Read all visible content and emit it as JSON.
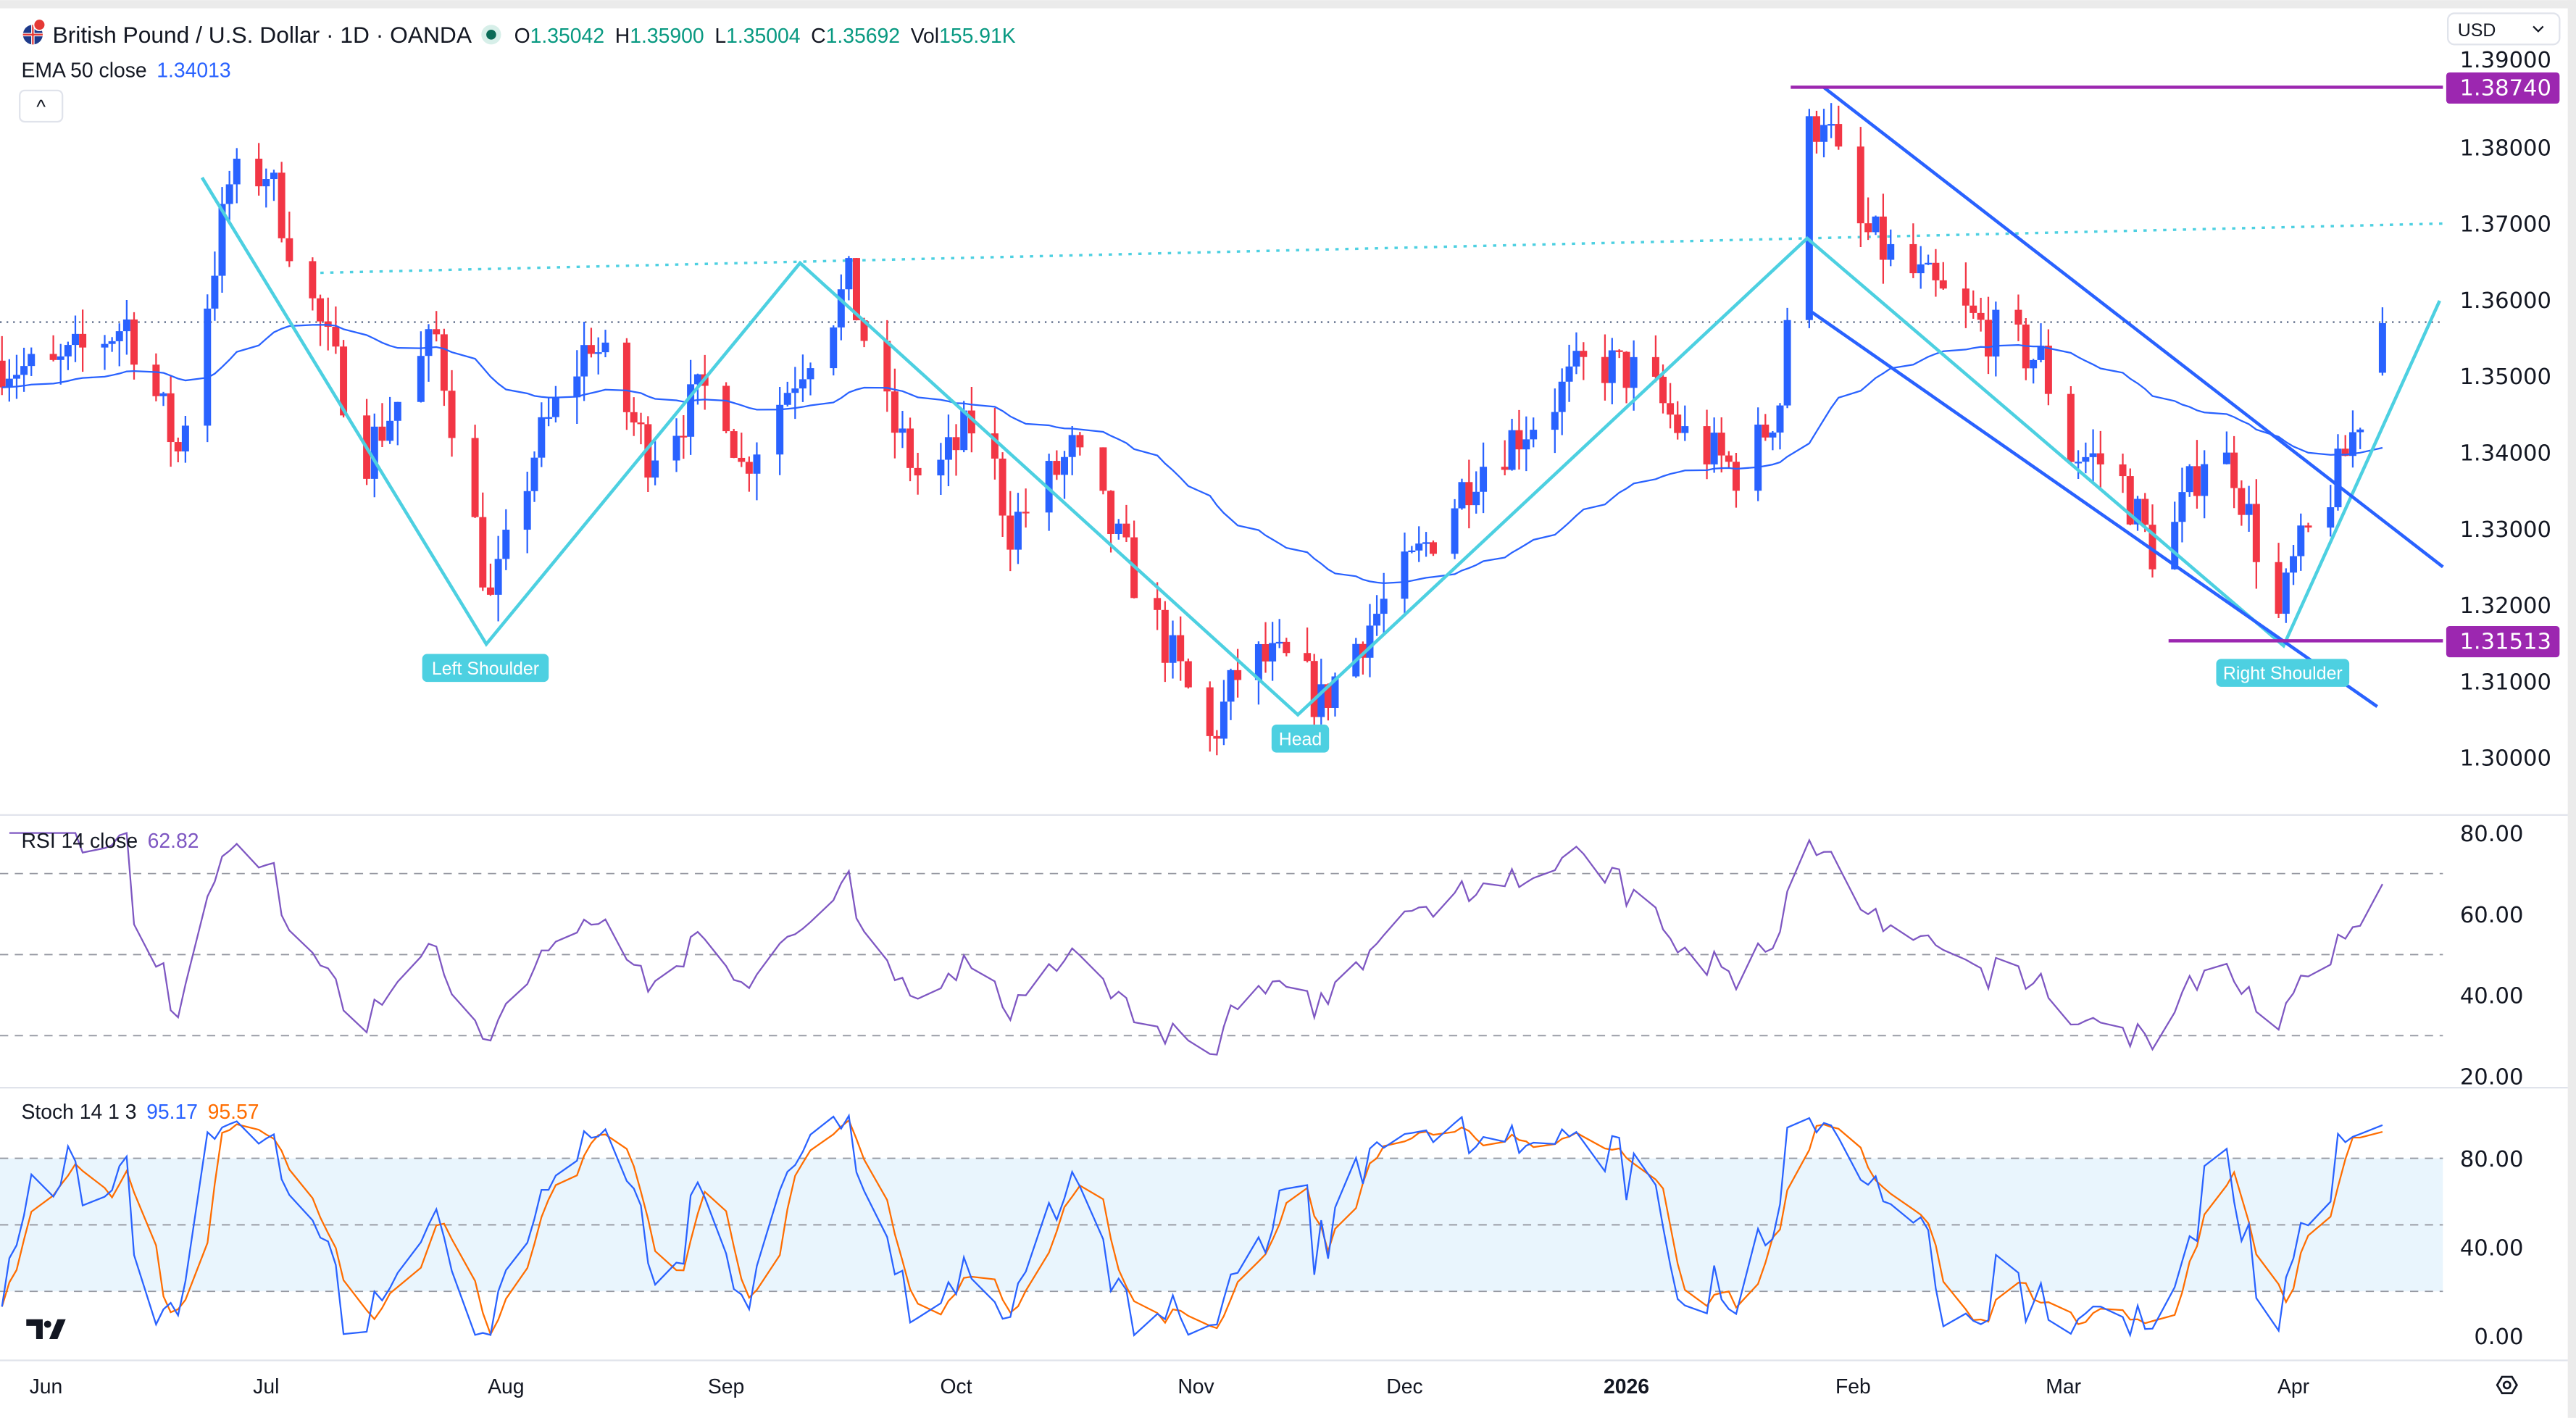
{
  "header": {
    "title": "British Pound / U.S. Dollar · 1D · OANDA",
    "open_label": "O",
    "open": "1.35042",
    "high_label": "H",
    "high": "1.35900",
    "low_label": "L",
    "low": "1.35004",
    "close_label": "C",
    "close": "1.35692",
    "vol_label": "Vol",
    "vol": "155.91K",
    "ema_label": "EMA 50 close",
    "ema_value": "1.34013",
    "currency": "USD",
    "collapse_glyph": "^"
  },
  "rsi": {
    "label": "RSI 14 close",
    "value": "62.82",
    "ticks": [
      "80.00",
      "60.00",
      "40.00",
      "20.00"
    ],
    "levels": [
      70,
      50,
      30
    ]
  },
  "stoch": {
    "label": "Stoch 14 1 3",
    "k_value": "95.17",
    "d_value": "95.57",
    "ticks": [
      "80.00",
      "40.00",
      "0.00"
    ],
    "band": [
      20,
      80
    ]
  },
  "annotations": {
    "left_shoulder": "Left Shoulder",
    "head": "Head",
    "right_shoulder": "Right Shoulder",
    "resistance_tag": "1.38740",
    "support_tag": "1.31513"
  },
  "colors": {
    "up": "#2962ff",
    "down": "#f23645",
    "ema": "#2962ff",
    "pattern": "#4dd0e1",
    "channel": "#2962ff",
    "levels": "#9c27b0",
    "rsi": "#7e57c2",
    "stoch_k": "#2962ff",
    "stoch_d": "#ff6d00"
  },
  "chart_data": {
    "type": "candlestick",
    "symbol": "GBPUSD",
    "interval": "1D",
    "price_ticks": [
      "1.39000",
      "1.38000",
      "1.37000",
      "1.36000",
      "1.35000",
      "1.34000",
      "1.33000",
      "1.32000",
      "1.31000",
      "1.30000"
    ],
    "ylim": [
      1.2975,
      1.3925
    ],
    "time_ticks": [
      "Jun",
      "Jul",
      "Aug",
      "Sep",
      "Oct",
      "Nov",
      "Dec",
      "2026",
      "Feb",
      "Mar",
      "Apr"
    ],
    "last_candle": {
      "open": 1.35042,
      "high": 1.359,
      "low": 1.35004,
      "close": 1.35692
    },
    "approx_close_path": [
      [
        "2025-05-26",
        1.352
      ],
      [
        "2025-06-01",
        1.35
      ],
      [
        "2025-06-12",
        1.357
      ],
      [
        "2025-06-19",
        1.34
      ],
      [
        "2025-06-26",
        1.375
      ],
      [
        "2025-07-01",
        1.377
      ],
      [
        "2025-07-06",
        1.362
      ],
      [
        "2025-07-14",
        1.34
      ],
      [
        "2025-07-23",
        1.355
      ],
      [
        "2025-07-30",
        1.32
      ],
      [
        "2025-08-05",
        1.34
      ],
      [
        "2025-08-13",
        1.355
      ],
      [
        "2025-08-21",
        1.34
      ],
      [
        "2025-08-31",
        1.35
      ],
      [
        "2025-09-03",
        1.338
      ],
      [
        "2025-09-11",
        1.352
      ],
      [
        "2025-09-17",
        1.362
      ],
      [
        "2025-09-22",
        1.345
      ],
      [
        "2025-09-27",
        1.335
      ],
      [
        "2025-10-04",
        1.345
      ],
      [
        "2025-10-08",
        1.33
      ],
      [
        "2025-10-16",
        1.34
      ],
      [
        "2025-10-21",
        1.33
      ],
      [
        "2025-10-28",
        1.315
      ],
      [
        "2025-11-03",
        1.302
      ],
      [
        "2025-11-08",
        1.313
      ],
      [
        "2025-11-15",
        1.312
      ],
      [
        "2025-11-19",
        1.307
      ],
      [
        "2025-11-24",
        1.315
      ],
      [
        "2025-12-02",
        1.325
      ],
      [
        "2025-12-11",
        1.338
      ],
      [
        "2025-12-20",
        1.345
      ],
      [
        "2025-12-27",
        1.352
      ],
      [
        "2026-01-03",
        1.35
      ],
      [
        "2026-01-09",
        1.342
      ],
      [
        "2026-01-17",
        1.337
      ],
      [
        "2026-01-22",
        1.347
      ],
      [
        "2026-01-25",
        1.38
      ],
      [
        "2026-01-28",
        1.385
      ],
      [
        "2026-02-01",
        1.37
      ],
      [
        "2026-02-08",
        1.364
      ],
      [
        "2026-02-17",
        1.357
      ],
      [
        "2026-02-26",
        1.352
      ],
      [
        "2026-03-02",
        1.34
      ],
      [
        "2026-03-08",
        1.338
      ],
      [
        "2026-03-14",
        1.325
      ],
      [
        "2026-03-20",
        1.34
      ],
      [
        "2026-03-24",
        1.338
      ],
      [
        "2026-03-30",
        1.318
      ],
      [
        "2026-04-01",
        1.325
      ],
      [
        "2026-04-07",
        1.337
      ],
      [
        "2026-04-10",
        1.345
      ],
      [
        "2026-04-13",
        1.35692
      ]
    ],
    "levels": {
      "resistance": 1.3874,
      "support": 1.31513
    },
    "pattern": "inverse head and shoulders",
    "grid": false
  }
}
